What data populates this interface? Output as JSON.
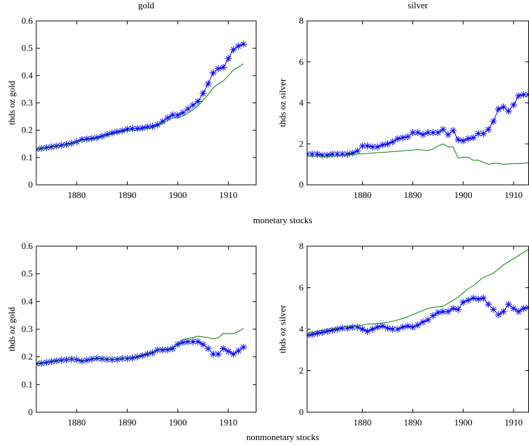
{
  "figure": {
    "row_labels": [
      "monetary stocks",
      "nonmonetary stocks"
    ]
  },
  "chart_data": [
    {
      "type": "line",
      "title": "gold",
      "ylabel": "thds oz gold",
      "x": [
        1872,
        1873,
        1874,
        1875,
        1876,
        1877,
        1878,
        1879,
        1880,
        1881,
        1882,
        1883,
        1884,
        1885,
        1886,
        1887,
        1888,
        1889,
        1890,
        1891,
        1892,
        1893,
        1894,
        1895,
        1896,
        1897,
        1898,
        1899,
        1900,
        1901,
        1902,
        1903,
        1904,
        1905,
        1906,
        1907,
        1908,
        1909,
        1910,
        1911,
        1912,
        1913
      ],
      "series": [
        {
          "color": "#0000ff",
          "marker": "*",
          "values": [
            0.13,
            0.133,
            0.136,
            0.139,
            0.142,
            0.145,
            0.148,
            0.152,
            0.158,
            0.166,
            0.168,
            0.17,
            0.173,
            0.178,
            0.184,
            0.19,
            0.194,
            0.198,
            0.204,
            0.206,
            0.206,
            0.208,
            0.212,
            0.214,
            0.22,
            0.232,
            0.245,
            0.256,
            0.255,
            0.264,
            0.278,
            0.292,
            0.305,
            0.335,
            0.37,
            0.41,
            0.425,
            0.43,
            0.462,
            0.495,
            0.508,
            0.515
          ]
        },
        {
          "color": "#008000",
          "values": [
            0.13,
            0.132,
            0.135,
            0.138,
            0.141,
            0.144,
            0.147,
            0.151,
            0.157,
            0.163,
            0.165,
            0.167,
            0.17,
            0.175,
            0.18,
            0.185,
            0.19,
            0.194,
            0.198,
            0.2,
            0.201,
            0.203,
            0.206,
            0.209,
            0.215,
            0.225,
            0.236,
            0.245,
            0.245,
            0.252,
            0.262,
            0.275,
            0.29,
            0.31,
            0.33,
            0.355,
            0.37,
            0.38,
            0.4,
            0.42,
            0.432,
            0.443
          ]
        }
      ],
      "xlim": [
        1872,
        1915.5
      ],
      "xticks": [
        1880,
        1890,
        1900,
        1910
      ],
      "ylim": [
        0,
        0.6
      ],
      "yticks": [
        0,
        0.1,
        0.2,
        0.3,
        0.4,
        0.5,
        0.6
      ]
    },
    {
      "type": "line",
      "title": "silver",
      "ylabel": "thds oz silver",
      "x": [
        1869,
        1870,
        1871,
        1872,
        1873,
        1874,
        1875,
        1876,
        1877,
        1878,
        1879,
        1880,
        1881,
        1882,
        1883,
        1884,
        1885,
        1886,
        1887,
        1888,
        1889,
        1890,
        1891,
        1892,
        1893,
        1894,
        1895,
        1896,
        1897,
        1898,
        1899,
        1900,
        1901,
        1902,
        1903,
        1904,
        1905,
        1906,
        1907,
        1908,
        1909,
        1910,
        1911,
        1912,
        1913
      ],
      "series": [
        {
          "color": "#0000ff",
          "marker": "*",
          "values": [
            1.5,
            1.5,
            1.5,
            1.45,
            1.45,
            1.5,
            1.5,
            1.5,
            1.5,
            1.55,
            1.65,
            1.9,
            1.9,
            1.85,
            1.85,
            1.95,
            2.0,
            2.1,
            2.25,
            2.3,
            2.35,
            2.55,
            2.55,
            2.45,
            2.55,
            2.55,
            2.55,
            2.7,
            2.45,
            2.65,
            2.2,
            2.15,
            2.25,
            2.3,
            2.5,
            2.5,
            2.7,
            3.1,
            3.7,
            3.8,
            3.6,
            3.9,
            4.35,
            4.4,
            4.4
          ]
        },
        {
          "color": "#008000",
          "values": [
            1.4,
            1.4,
            1.4,
            1.38,
            1.38,
            1.4,
            1.42,
            1.45,
            1.47,
            1.48,
            1.5,
            1.52,
            1.53,
            1.55,
            1.57,
            1.58,
            1.6,
            1.62,
            1.64,
            1.66,
            1.68,
            1.7,
            1.72,
            1.7,
            1.68,
            1.75,
            1.9,
            2.0,
            1.85,
            1.85,
            1.3,
            1.35,
            1.35,
            1.2,
            1.2,
            1.1,
            1.0,
            1.05,
            1.05,
            1.0,
            1.02,
            1.03,
            1.04,
            1.05,
            1.07
          ]
        }
      ],
      "xlim": [
        1869,
        1913
      ],
      "xticks": [
        1880,
        1890,
        1900,
        1910
      ],
      "ylim": [
        0,
        8
      ],
      "yticks": [
        0,
        2,
        4,
        6,
        8
      ]
    },
    {
      "type": "line",
      "ylabel": "thds oz gold",
      "x": [
        1872,
        1873,
        1874,
        1875,
        1876,
        1877,
        1878,
        1879,
        1880,
        1881,
        1882,
        1883,
        1884,
        1885,
        1886,
        1887,
        1888,
        1889,
        1890,
        1891,
        1892,
        1893,
        1894,
        1895,
        1896,
        1897,
        1898,
        1899,
        1900,
        1901,
        1902,
        1903,
        1904,
        1905,
        1906,
        1907,
        1908,
        1909,
        1910,
        1911,
        1912,
        1913
      ],
      "series": [
        {
          "color": "#0000ff",
          "marker": "*",
          "values": [
            0.175,
            0.177,
            0.18,
            0.183,
            0.186,
            0.188,
            0.19,
            0.192,
            0.19,
            0.185,
            0.188,
            0.192,
            0.195,
            0.193,
            0.191,
            0.19,
            0.191,
            0.194,
            0.194,
            0.196,
            0.2,
            0.205,
            0.21,
            0.215,
            0.225,
            0.225,
            0.226,
            0.23,
            0.245,
            0.252,
            0.255,
            0.255,
            0.255,
            0.245,
            0.23,
            0.21,
            0.21,
            0.23,
            0.22,
            0.21,
            0.222,
            0.235
          ]
        },
        {
          "color": "#008000",
          "values": [
            0.177,
            0.179,
            0.182,
            0.185,
            0.188,
            0.19,
            0.191,
            0.192,
            0.191,
            0.187,
            0.189,
            0.193,
            0.196,
            0.194,
            0.192,
            0.191,
            0.192,
            0.195,
            0.196,
            0.198,
            0.202,
            0.208,
            0.213,
            0.218,
            0.226,
            0.228,
            0.229,
            0.235,
            0.25,
            0.262,
            0.267,
            0.27,
            0.275,
            0.272,
            0.27,
            0.265,
            0.268,
            0.285,
            0.283,
            0.284,
            0.292,
            0.303
          ]
        }
      ],
      "xlim": [
        1872,
        1915.5
      ],
      "xticks": [
        1880,
        1890,
        1900,
        1910
      ],
      "ylim": [
        0,
        0.6
      ],
      "yticks": [
        0,
        0.1,
        0.2,
        0.3,
        0.4,
        0.5,
        0.6
      ]
    },
    {
      "type": "line",
      "ylabel": "thds oz silver",
      "x": [
        1869,
        1870,
        1871,
        1872,
        1873,
        1874,
        1875,
        1876,
        1877,
        1878,
        1879,
        1880,
        1881,
        1882,
        1883,
        1884,
        1885,
        1886,
        1887,
        1888,
        1889,
        1890,
        1891,
        1892,
        1893,
        1894,
        1895,
        1896,
        1897,
        1898,
        1899,
        1900,
        1901,
        1902,
        1903,
        1904,
        1905,
        1906,
        1907,
        1908,
        1909,
        1910,
        1911,
        1912,
        1913
      ],
      "series": [
        {
          "color": "#0000ff",
          "marker": "*",
          "values": [
            3.7,
            3.75,
            3.8,
            3.85,
            3.9,
            3.95,
            4.0,
            4.05,
            4.05,
            4.1,
            4.1,
            4.0,
            3.9,
            4.0,
            4.1,
            4.15,
            4.05,
            4.0,
            4.0,
            4.1,
            4.15,
            4.1,
            4.2,
            4.35,
            4.45,
            4.65,
            4.8,
            4.85,
            4.85,
            5.0,
            4.95,
            5.3,
            5.4,
            5.5,
            5.45,
            5.5,
            5.2,
            4.95,
            4.7,
            4.85,
            5.2,
            5.0,
            4.85,
            5.0,
            5.05
          ]
        },
        {
          "color": "#008000",
          "values": [
            3.8,
            3.85,
            3.9,
            3.95,
            4.0,
            4.03,
            4.06,
            4.1,
            4.12,
            4.15,
            4.15,
            4.2,
            4.25,
            4.25,
            4.28,
            4.3,
            4.33,
            4.38,
            4.45,
            4.52,
            4.6,
            4.7,
            4.8,
            4.9,
            5.0,
            5.05,
            5.08,
            5.1,
            5.25,
            5.4,
            5.55,
            5.75,
            5.95,
            6.1,
            6.3,
            6.5,
            6.6,
            6.7,
            6.9,
            7.1,
            7.25,
            7.4,
            7.55,
            7.7,
            7.85
          ]
        }
      ],
      "xlim": [
        1869,
        1913
      ],
      "xticks": [
        1880,
        1890,
        1900,
        1910
      ],
      "ylim": [
        0,
        8
      ],
      "yticks": [
        0,
        2,
        4,
        6,
        8
      ]
    }
  ]
}
